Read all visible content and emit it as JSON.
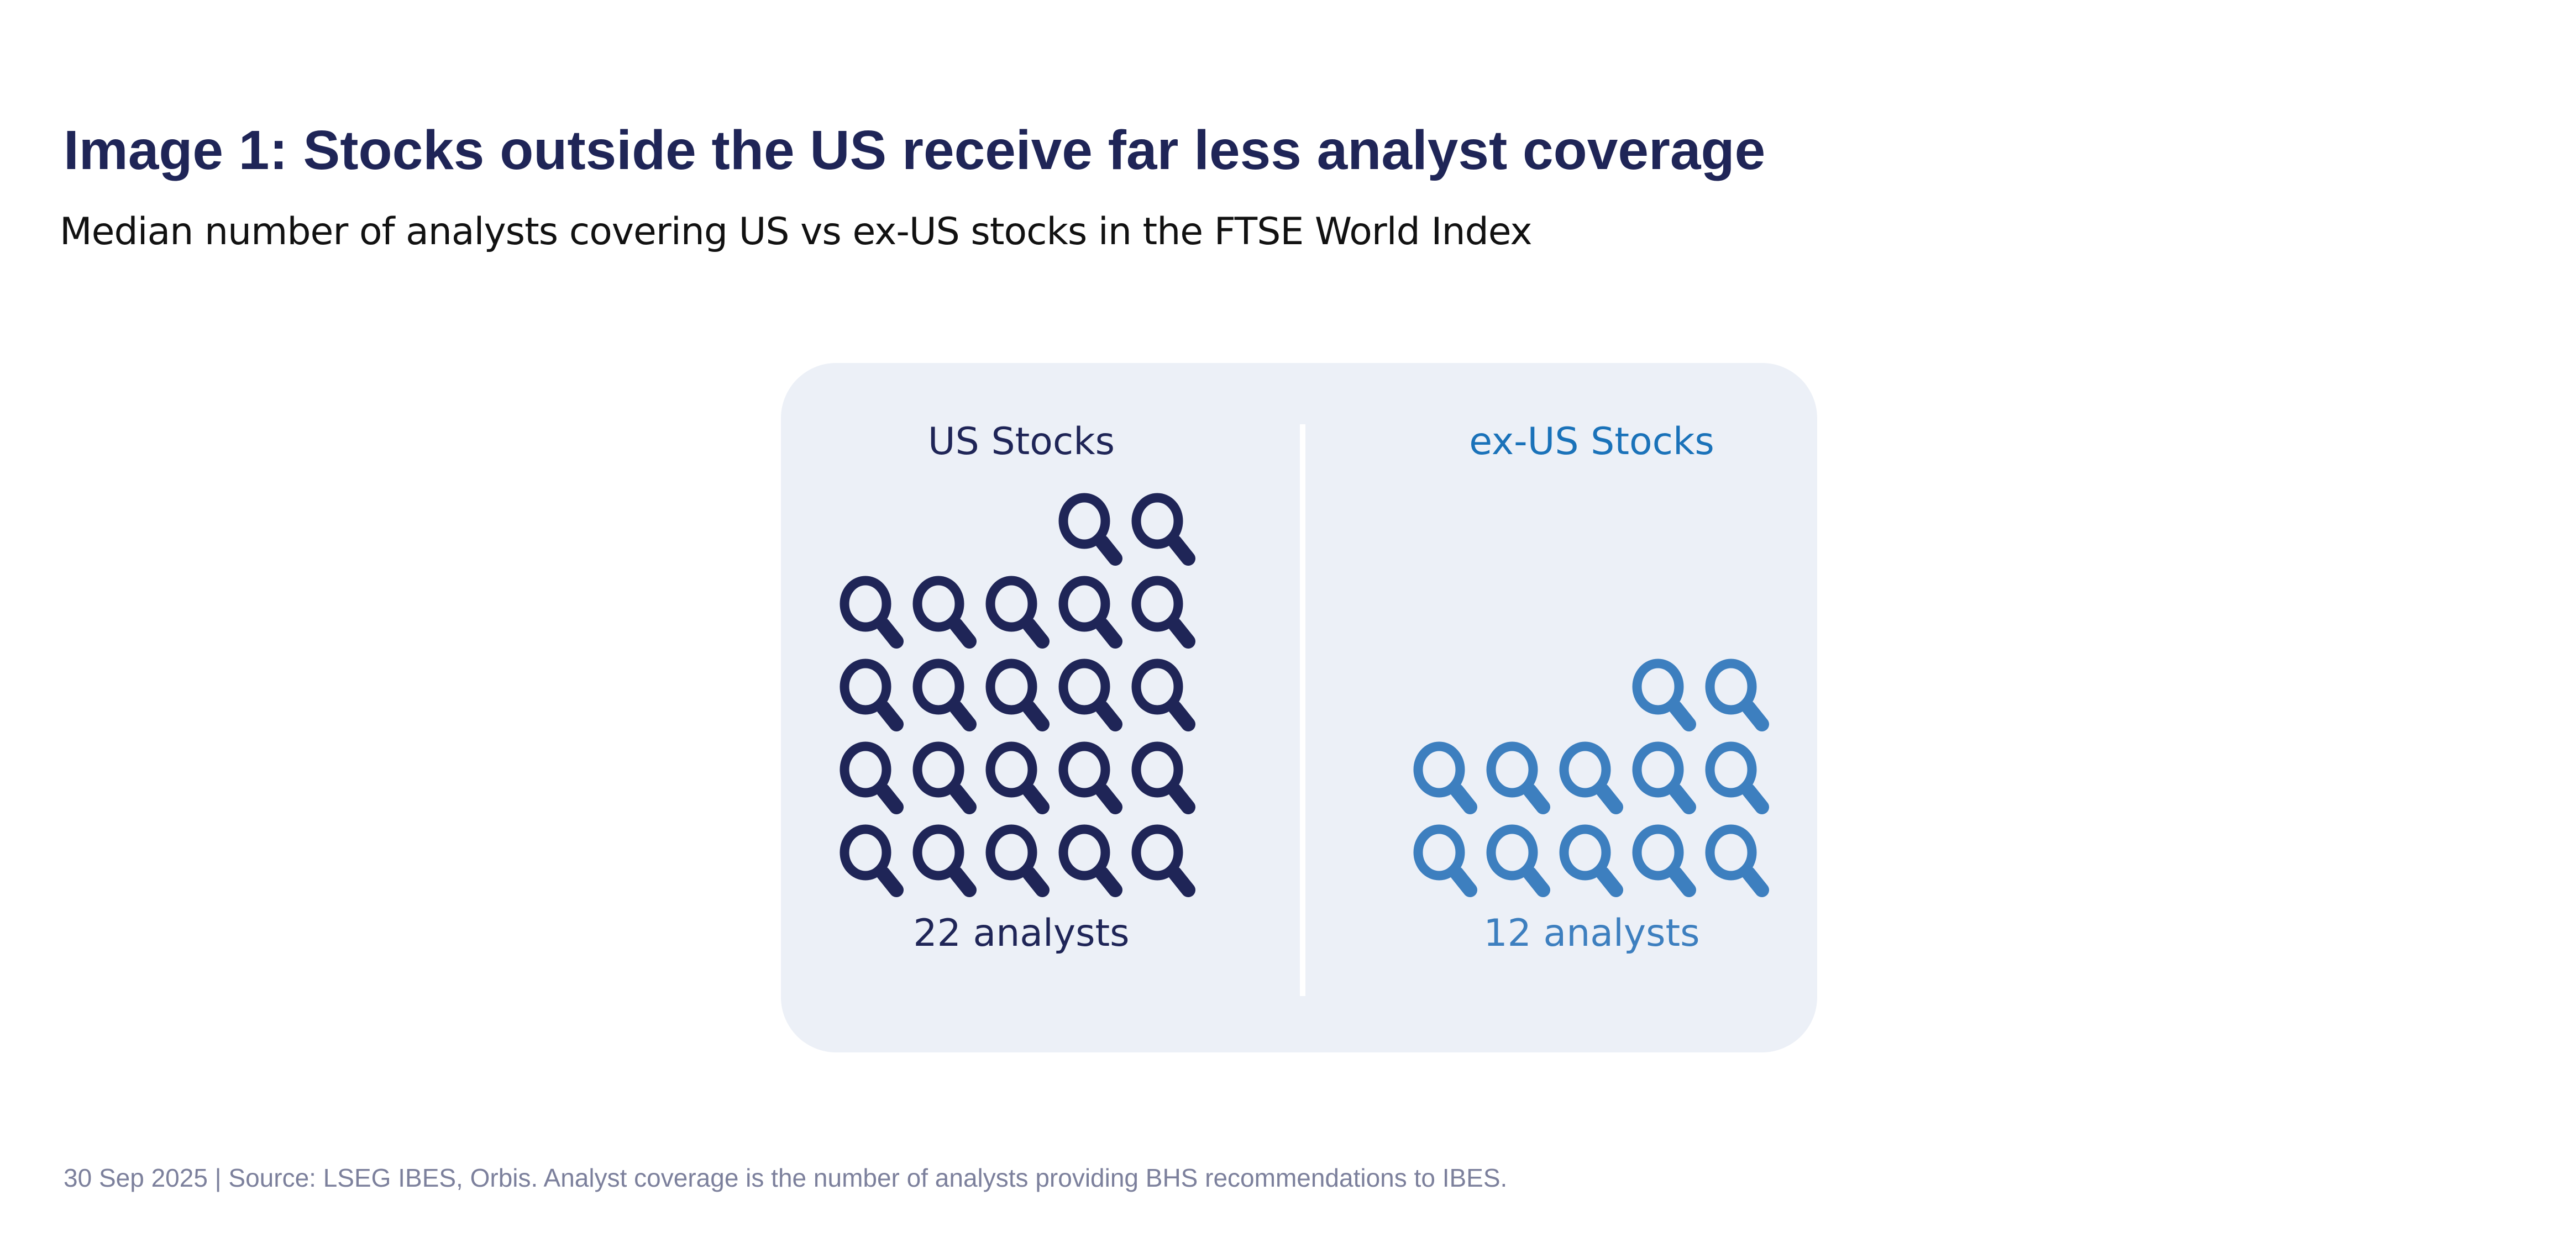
{
  "title": "Image 1: Stocks outside the US receive far less analyst coverage",
  "subtitle": "Median number of analysts covering US vs ex-US stocks in the FTSE World Index",
  "footer": "30 Sep 2025 | Source: LSEG IBES, Orbis. Analyst coverage is the number of analysts providing BHS recommendations to IBES.",
  "chart_data": {
    "type": "pictogram",
    "icon": "magnifying-glass-icon",
    "icons_per_row": 5,
    "categories": [
      "US Stocks",
      "ex-US Stocks"
    ],
    "values": [
      22,
      12
    ],
    "value_labels": [
      "22 analysts",
      "12 analysts"
    ],
    "colors": {
      "US Stocks": "#1f2557",
      "ex-US Stocks": "#3d7fbf"
    },
    "heading_colors": {
      "US Stocks": "#1f2557",
      "ex-US Stocks": "#1a72b9"
    },
    "panel_color": "#ecf0f7"
  }
}
